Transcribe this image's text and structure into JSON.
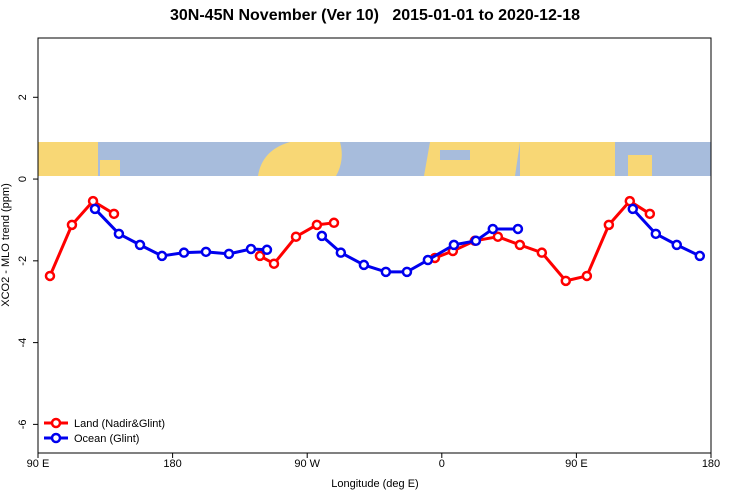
{
  "chart_data": {
    "type": "line",
    "title": "30N-45N November (Ver 10)   2015-01-01 to 2020-12-18",
    "x_label": "Longitude (deg E)",
    "y_label": "XCO2 - MLO trend (ppm)",
    "xlim": [
      90,
      540
    ],
    "ylim": [
      -6.7,
      3.45
    ],
    "xticks": [
      {
        "value": 90,
        "label": "90 E"
      },
      180,
      {
        "value": 270,
        "label": "90 W"
      },
      {
        "value": 360,
        "label": "0"
      },
      {
        "value": 450,
        "label": "90 E"
      },
      {
        "value": 540,
        "label": "180"
      }
    ],
    "yticks": [
      -6,
      -4,
      -2,
      0,
      2
    ],
    "legend": "bottom-left",
    "series": [
      {
        "name": "Land (Nadir&Glint)",
        "color": "#ff0000",
        "x": [
          98,
          112.7,
          126.8,
          140.8,
          null,
          238.4,
          247.8,
          262.5,
          276.5,
          287.9,
          null,
          355.4,
          367.4,
          382.1,
          397.5,
          412.2,
          426.9,
          442.9,
          457,
          471.7,
          485.7,
          499.1
        ],
        "values": [
          -2.37,
          -1.12,
          -0.54,
          -0.85,
          null,
          -1.88,
          -2.07,
          -1.41,
          -1.12,
          -1.07,
          null,
          -1.93,
          -1.76,
          -1.51,
          -1.41,
          -1.61,
          -1.8,
          -2.49,
          -2.37,
          -1.12,
          -0.54,
          -0.85
        ]
      },
      {
        "name": "Ocean (Glint)",
        "color": "#0000ee",
        "x": [
          128.1,
          144.1,
          158.2,
          172.9,
          187.6,
          202.3,
          217.7,
          232.4,
          243.1,
          null,
          279.8,
          292.5,
          307.9,
          322.6,
          336.7,
          350.7,
          368.1,
          382.8,
          394.1,
          410.9,
          null,
          487.7,
          503.1,
          517.1,
          532.5
        ],
        "values": [
          -0.73,
          -1.34,
          -1.61,
          -1.88,
          -1.8,
          -1.78,
          -1.83,
          -1.71,
          -1.73,
          null,
          -1.39,
          -1.8,
          -2.1,
          -2.27,
          -2.27,
          -1.98,
          -1.61,
          -1.51,
          -1.22,
          -1.22,
          null,
          -0.73,
          -1.34,
          -1.61,
          -1.88
        ]
      }
    ]
  }
}
